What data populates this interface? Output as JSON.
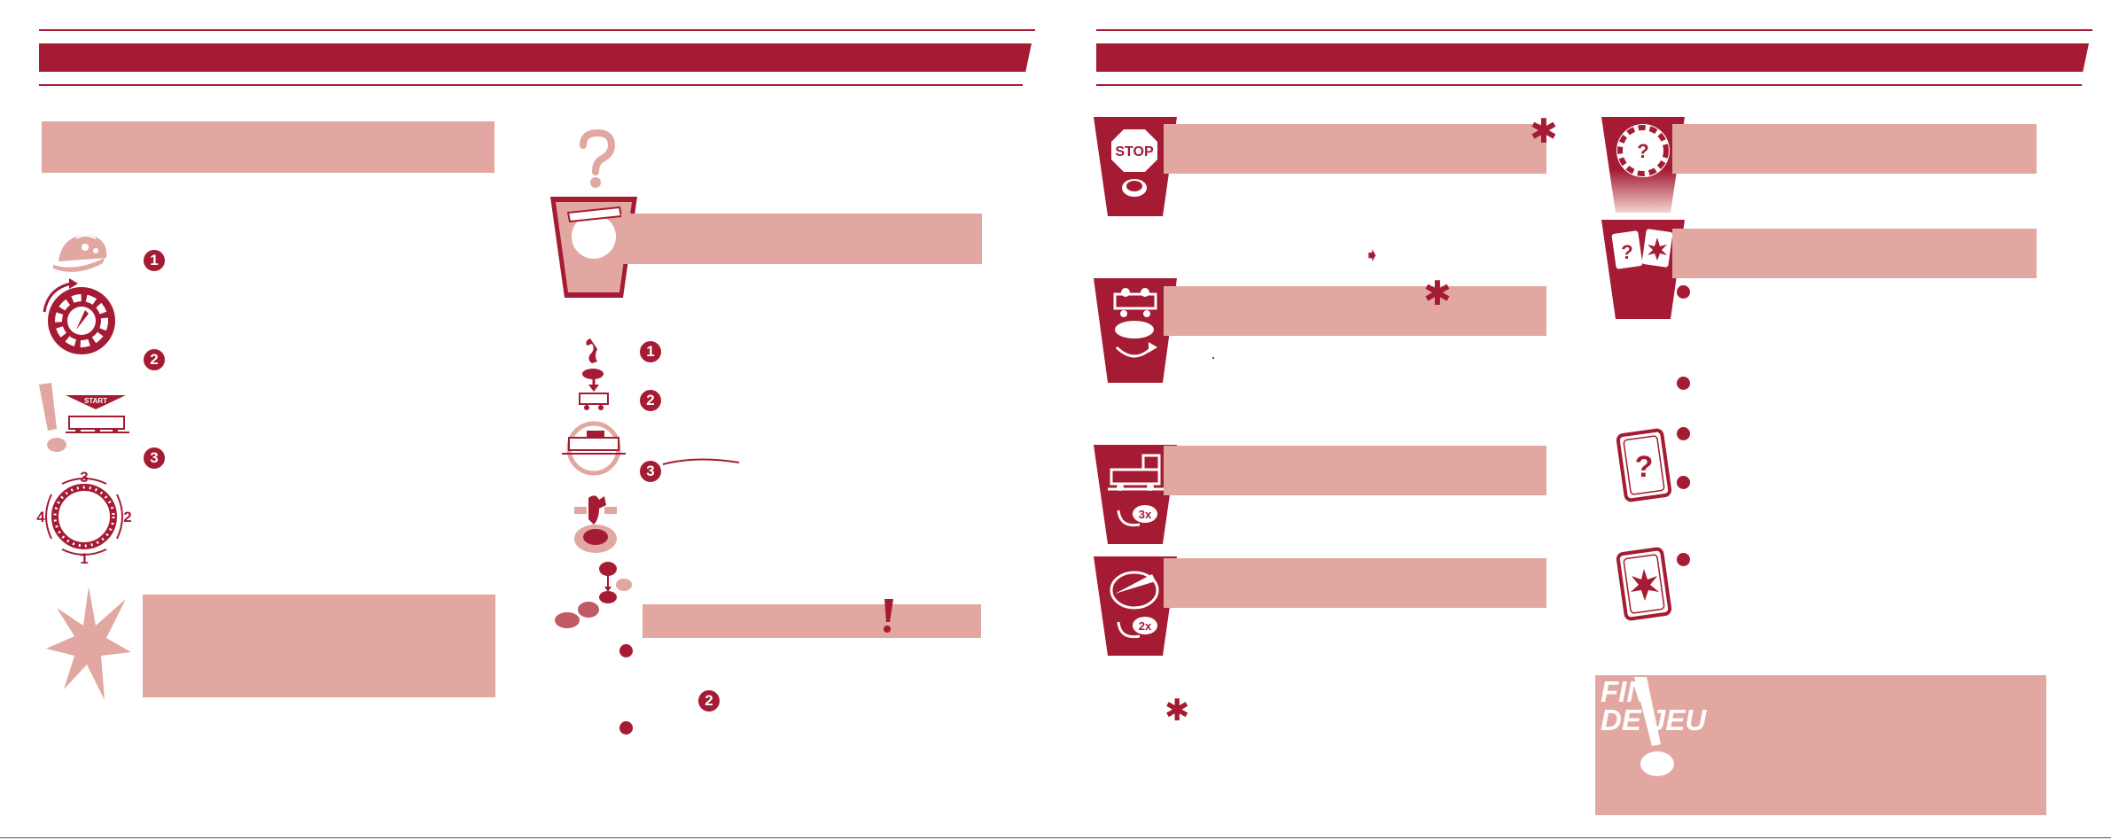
{
  "left_page": {
    "steps_col1": [
      "1",
      "2",
      "3"
    ],
    "steps_col2": [
      "1",
      "2",
      "3"
    ],
    "inline_step": "2"
  },
  "right_page": {
    "end_of_game": {
      "line1": "FIN",
      "line2": "DE JEU"
    }
  },
  "icons": {
    "stop_sign_text": "STOP",
    "start_banner_text": "START",
    "track_numbers": [
      "1",
      "2",
      "3",
      "4"
    ],
    "multiplier_3": "3x",
    "multiplier_2": "2x"
  },
  "colors": {
    "accent": "#a51b33",
    "pink_box": "#e1a7a0",
    "light_pink": "#e9b3ac"
  }
}
